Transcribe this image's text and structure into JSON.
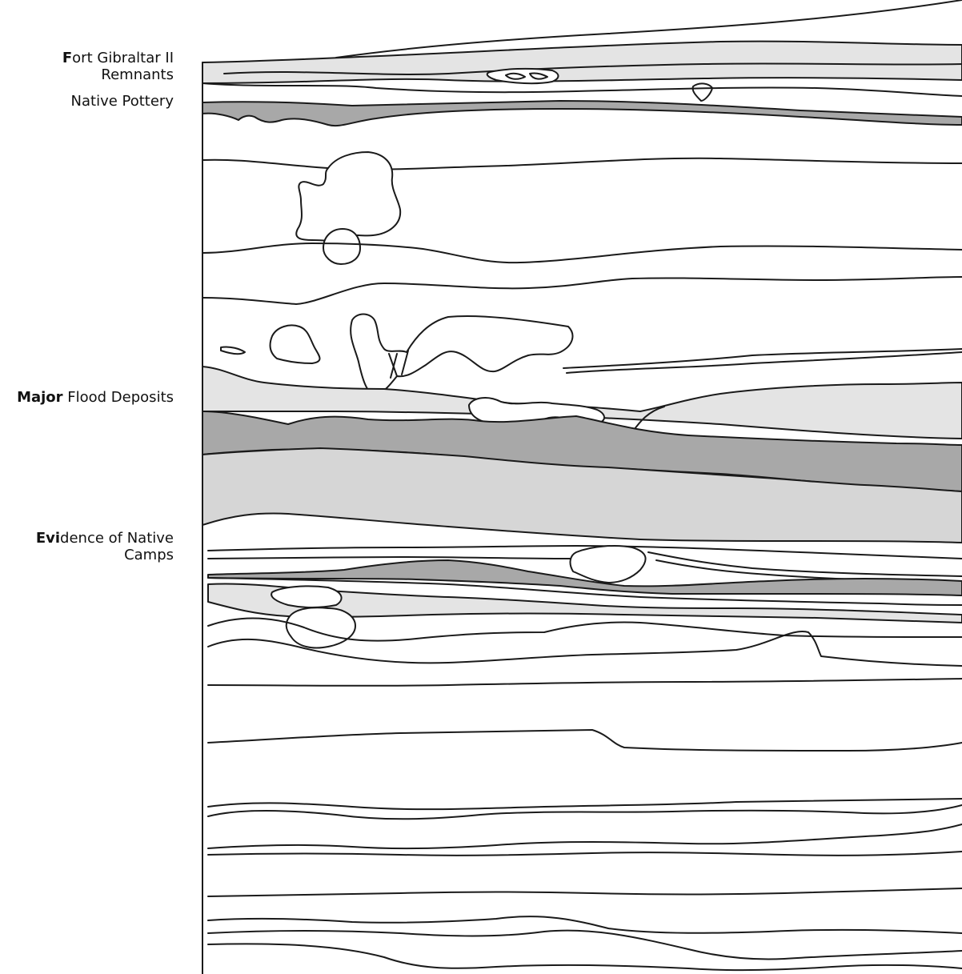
{
  "labels": {
    "fort_gibraltar": {
      "emphasis": "F",
      "line1": "ort Gibraltar II",
      "line2": "Remnants"
    },
    "native_pottery": "Native Pottery",
    "flood_deposits": {
      "emphasis": "Major",
      "rest": " Flood Deposits"
    },
    "native_camps": {
      "emphasis": "Evi",
      "line1": "dence of Native",
      "line2": "Camps"
    }
  },
  "colors": {
    "line": "#1a1a1a",
    "light_fill": "#e4e4e4",
    "mid_fill": "#d6d6d6",
    "dark_fill": "#a8a8a8"
  }
}
